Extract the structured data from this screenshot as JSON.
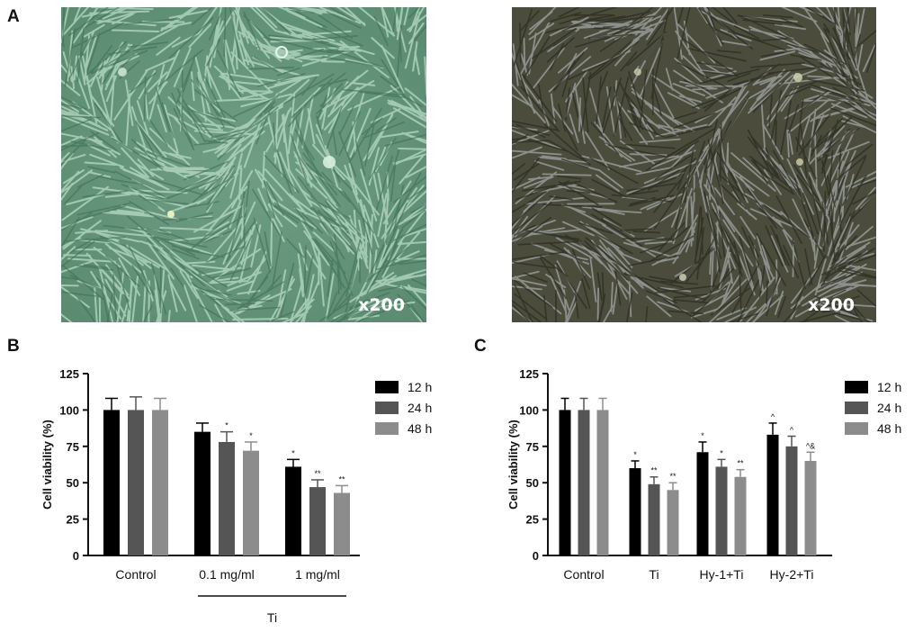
{
  "panels": {
    "a": {
      "label": "A",
      "left_magnification": "x200",
      "right_magnification": "x200"
    },
    "b": {
      "label": "B"
    },
    "c": {
      "label": "C"
    }
  },
  "chart_data": [
    {
      "type": "bar",
      "panel": "B",
      "categories": [
        "Control",
        "0.1 mg/ml",
        "1 mg/ml"
      ],
      "group_label": "Ti",
      "ylabel": "Cell viability (%)",
      "xlabel": "",
      "ylim": [
        0,
        125
      ],
      "yticks": [
        0,
        25,
        50,
        75,
        100,
        125
      ],
      "legend_position": "top-right",
      "grid": false,
      "series": [
        {
          "name": "12 h",
          "color": "#000000",
          "values": [
            100,
            85,
            61
          ],
          "errors": [
            8,
            6,
            5
          ],
          "marks": [
            "",
            "",
            "*"
          ]
        },
        {
          "name": "24 h",
          "color": "#555555",
          "values": [
            100,
            78,
            47
          ],
          "errors": [
            9,
            7,
            5
          ],
          "marks": [
            "",
            "*",
            "**"
          ]
        },
        {
          "name": "48 h",
          "color": "#8c8c8c",
          "values": [
            100,
            72,
            43
          ],
          "errors": [
            8,
            6,
            5
          ],
          "marks": [
            "",
            "*",
            "**"
          ]
        }
      ]
    },
    {
      "type": "bar",
      "panel": "C",
      "categories": [
        "Control",
        "Ti",
        "Hy-1+Ti",
        "Hy-2+Ti"
      ],
      "ylabel": "Cell viability (%)",
      "xlabel": "",
      "ylim": [
        0,
        125
      ],
      "yticks": [
        0,
        25,
        50,
        75,
        100,
        125
      ],
      "legend_position": "top-right",
      "grid": false,
      "series": [
        {
          "name": "12 h",
          "color": "#000000",
          "values": [
            100,
            60,
            71,
            83
          ],
          "errors": [
            8,
            5,
            7,
            8
          ],
          "marks": [
            "",
            "*",
            "*",
            "^"
          ]
        },
        {
          "name": "24 h",
          "color": "#555555",
          "values": [
            100,
            49,
            61,
            75
          ],
          "errors": [
            8,
            5,
            5,
            7
          ],
          "marks": [
            "",
            "**",
            "*",
            "^"
          ]
        },
        {
          "name": "48 h",
          "color": "#8c8c8c",
          "values": [
            100,
            45,
            54,
            65
          ],
          "errors": [
            8,
            5,
            5,
            6
          ],
          "marks": [
            "",
            "**",
            "**",
            "^&"
          ]
        }
      ]
    }
  ]
}
